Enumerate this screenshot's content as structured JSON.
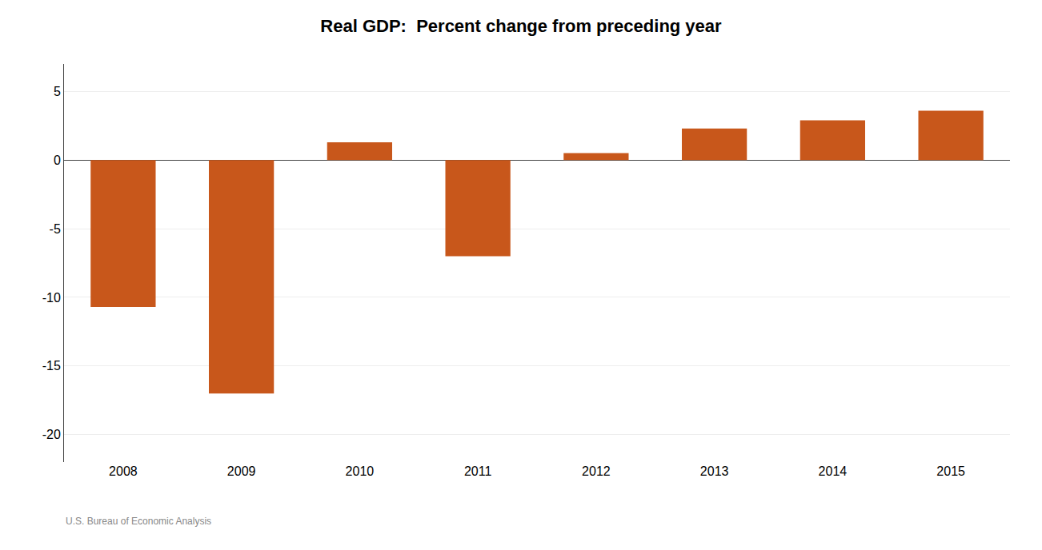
{
  "chart_data": {
    "type": "bar",
    "title": "Real GDP:  Percent change from preceding year",
    "categories": [
      "2008",
      "2009",
      "2010",
      "2011",
      "2012",
      "2013",
      "2014",
      "2015"
    ],
    "values": [
      -10.7,
      -17.0,
      1.3,
      -7.0,
      0.5,
      2.3,
      2.9,
      3.6
    ],
    "color": "#C8571B",
    "ylim": [
      -22,
      7
    ],
    "yticks": [
      -20,
      -15,
      -10,
      -5,
      0,
      5
    ],
    "grid": true,
    "annotations": [
      "U.S. Bureau of Economic Analysis"
    ]
  }
}
